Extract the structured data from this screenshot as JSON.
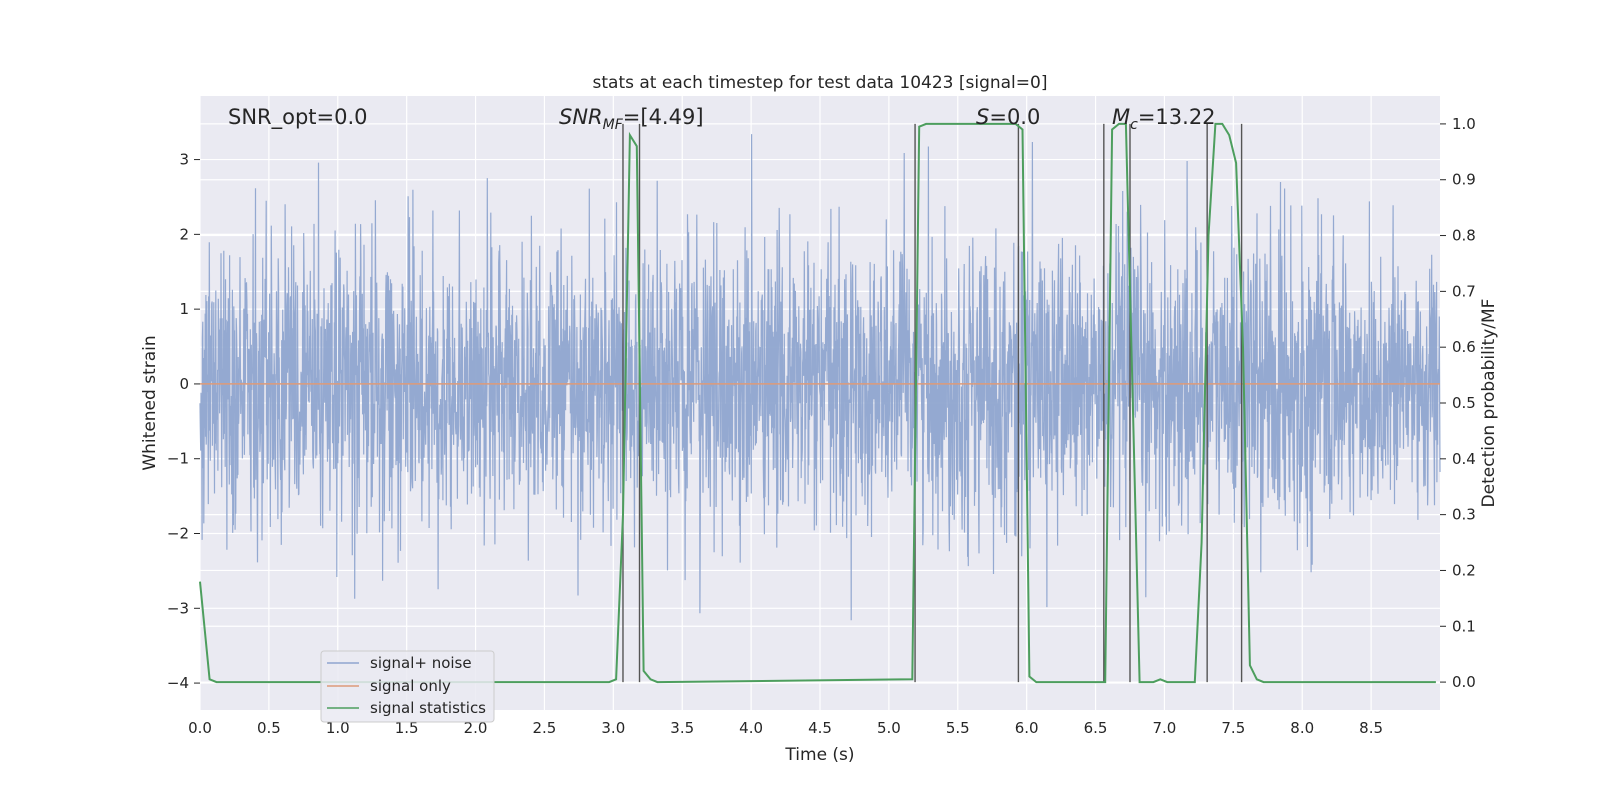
{
  "chart_data": {
    "type": "line",
    "title": "stats at each timestep for test data 10423 [signal=0]",
    "xlabel": "Time (s)",
    "ylabel": "Whitened strain",
    "y2label": "Detection probability/MF",
    "xlim": [
      0,
      9
    ],
    "ylim": [
      -4.36,
      3.85
    ],
    "y2lim": [
      -0.05,
      1.05
    ],
    "x_ticks": [
      0.0,
      0.5,
      1.0,
      1.5,
      2.0,
      2.5,
      3.0,
      3.5,
      4.0,
      4.5,
      5.0,
      5.5,
      6.0,
      6.5,
      7.0,
      7.5,
      8.0,
      8.5
    ],
    "x_tick_labels": [
      "0.0",
      "0.5",
      "1.0",
      "1.5",
      "2.0",
      "2.5",
      "3.0",
      "3.5",
      "4.0",
      "4.5",
      "5.0",
      "5.5",
      "6.0",
      "6.5",
      "7.0",
      "7.5",
      "8.0",
      "8.5"
    ],
    "y_ticks": [
      3,
      2,
      1,
      0,
      -1,
      -2,
      -3,
      -4
    ],
    "y_tick_labels": [
      "3",
      "2",
      "1",
      "0",
      "−1",
      "−2",
      "−3",
      "−4"
    ],
    "y2_ticks": [
      1.0,
      0.9,
      0.8,
      0.7,
      0.6,
      0.5,
      0.4,
      0.3,
      0.2,
      0.1,
      0.0
    ],
    "y2_tick_labels": [
      "1.0",
      "0.9",
      "0.8",
      "0.7",
      "0.6",
      "0.5",
      "0.4",
      "0.3",
      "0.2",
      "0.1",
      "0.0"
    ],
    "grid": true,
    "legend_position": "lower-left",
    "annotations": {
      "snr_opt": "SNR_opt=0.0",
      "snr_mf_main": "SNR",
      "snr_mf_sub": "MF",
      "snr_mf_value": "=[4.49]",
      "s_main": "S",
      "s_value": "=0.0",
      "mc_main": "M",
      "mc_sub": "c",
      "mc_value": "=13.22"
    },
    "series": [
      {
        "name": "signal+ noise",
        "color": "#8fa5cf",
        "axis": "left",
        "kind": "noise",
        "typical_range": [
          -1.8,
          1.8
        ],
        "max_abs": 3.5
      },
      {
        "name": "signal only",
        "color": "#dd9a79",
        "axis": "left",
        "x": [
          0,
          9
        ],
        "y": [
          0,
          0
        ]
      },
      {
        "name": "signal statistics",
        "color": "#4d9e5e",
        "axis": "right",
        "x": [
          0.0,
          0.07,
          0.12,
          2.97,
          3.02,
          3.07,
          3.12,
          3.17,
          3.22,
          3.27,
          3.32,
          5.17,
          5.22,
          5.27,
          5.32,
          5.92,
          5.97,
          6.02,
          6.07,
          6.12,
          6.57,
          6.62,
          6.67,
          6.72,
          6.77,
          6.82,
          6.87,
          6.92,
          6.97,
          7.02,
          7.07,
          7.12,
          7.17,
          7.22,
          7.27,
          7.32,
          7.37,
          7.42,
          7.47,
          7.52,
          7.57,
          7.62,
          7.67,
          7.72,
          8.97
        ],
        "y": [
          0.18,
          0.005,
          0.0,
          0.0,
          0.005,
          0.3,
          0.98,
          0.96,
          0.02,
          0.005,
          0.0,
          0.005,
          0.995,
          1.0,
          1.0,
          1.0,
          0.99,
          0.01,
          0.0,
          0.0,
          0.0,
          0.99,
          1.0,
          1.0,
          0.5,
          0.0,
          0.0,
          0.0,
          0.005,
          0.0,
          0.0,
          0.0,
          0.0,
          0.0,
          0.25,
          0.8,
          1.0,
          1.0,
          0.98,
          0.93,
          0.6,
          0.03,
          0.005,
          0.0,
          0.0
        ]
      }
    ],
    "vertical_markers": [
      3.07,
      3.19,
      5.19,
      5.94,
      6.56,
      6.75,
      7.31,
      7.56
    ]
  }
}
